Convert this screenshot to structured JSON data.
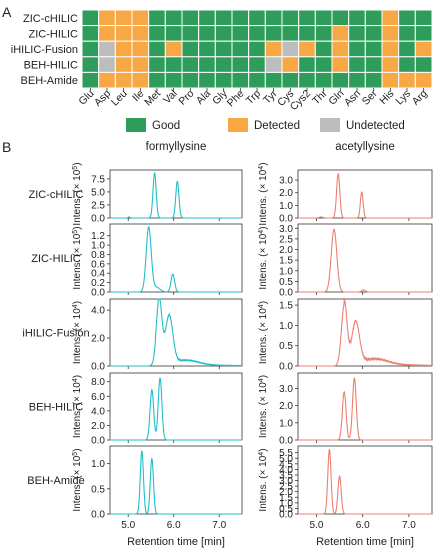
{
  "figure": {
    "panel_a_label": "A",
    "panel_b_label": "B"
  },
  "chart_data": [
    {
      "type": "heatmap",
      "panel": "A",
      "rows": [
        "ZIC-cHILIC",
        "ZIC-HILIC",
        "iHILIC-Fusion",
        "BEH-HILIC",
        "BEH-Amide"
      ],
      "columns": [
        "Glu",
        "Asp",
        "Leu",
        "Ile",
        "Met",
        "Val",
        "Pro",
        "Ala",
        "Gly",
        "Phe",
        "Trp",
        "Tyr",
        "Cys",
        "Cys2",
        "Thr",
        "Gln",
        "Asn",
        "Ser",
        "His",
        "Lys",
        "Arg"
      ],
      "values": [
        [
          "G",
          "D",
          "D",
          "D",
          "G",
          "G",
          "G",
          "G",
          "G",
          "G",
          "G",
          "G",
          "G",
          "G",
          "G",
          "G",
          "G",
          "G",
          "D",
          "G",
          "G"
        ],
        [
          "G",
          "D",
          "D",
          "D",
          "G",
          "G",
          "G",
          "G",
          "G",
          "G",
          "G",
          "G",
          "G",
          "G",
          "G",
          "D",
          "G",
          "G",
          "D",
          "G",
          "G"
        ],
        [
          "G",
          "U",
          "D",
          "D",
          "G",
          "D",
          "G",
          "G",
          "G",
          "G",
          "G",
          "D",
          "U",
          "D",
          "G",
          "D",
          "G",
          "G",
          "D",
          "G",
          "D"
        ],
        [
          "G",
          "U",
          "D",
          "D",
          "G",
          "G",
          "G",
          "G",
          "G",
          "G",
          "G",
          "U",
          "D",
          "G",
          "G",
          "D",
          "G",
          "G",
          "D",
          "G",
          "G"
        ],
        [
          "G",
          "D",
          "D",
          "D",
          "G",
          "G",
          "G",
          "G",
          "G",
          "G",
          "G",
          "G",
          "G",
          "G",
          "G",
          "G",
          "G",
          "G",
          "D",
          "D",
          "D"
        ]
      ],
      "legend": [
        {
          "key": "G",
          "label": "Good",
          "color": "#2e9c5a"
        },
        {
          "key": "D",
          "label": "Detected",
          "color": "#f7a845"
        },
        {
          "key": "U",
          "label": "Undetected",
          "color": "#bdbdbd"
        }
      ]
    },
    {
      "type": "line",
      "panel": "B",
      "xlabel": "Retention time [min]",
      "xlim": [
        4.6,
        7.5
      ],
      "xticks": [
        5.0,
        6.0,
        7.0
      ],
      "xtick_labels": [
        "5.0",
        "6.0",
        "7.0"
      ],
      "ylabel_prefix": "Intens. (× 10",
      "ylabel_suffix": ")",
      "columns": [
        {
          "title": "formyllysine",
          "color": "#22bfc9"
        },
        {
          "title": "acetyllysine",
          "color": "#ee7f70"
        }
      ],
      "rows": [
        "ZIC-cHILIC",
        "ZIC-HILIC",
        "iHILIC-Fusion",
        "BEH-HILIC",
        "BEH-Amide"
      ],
      "plots": [
        [
          {
            "exp": "5",
            "ymax": 9.2,
            "yticks": [
              0.0,
              2.5,
              5.0,
              7.5
            ],
            "ytick_labels": [
              "0.0",
              "2.5",
              "5.0",
              "7.5"
            ],
            "peaks": [
              [
                5.58,
                8.6,
                0.035
              ],
              [
                6.08,
                7.0,
                0.035
              ],
              [
                5.02,
                0.2,
                0.02
              ]
            ]
          },
          {
            "exp": "4",
            "ymax": 3.8,
            "yticks": [
              0.0,
              1.0,
              2.0,
              3.0
            ],
            "ytick_labels": [
              "0.0",
              "1.0",
              "2.0",
              "3.0"
            ],
            "peaks": [
              [
                5.47,
                3.5,
                0.035
              ],
              [
                5.98,
                2.05,
                0.03
              ],
              [
                5.1,
                0.08,
                0.04
              ]
            ]
          }
        ],
        [
          {
            "exp": "5",
            "ymax": 1.45,
            "yticks": [
              0.0,
              0.2,
              0.4,
              0.6,
              0.8,
              1.0,
              1.2
            ],
            "ytick_labels": [
              "0.0",
              "0.2",
              "0.4",
              "0.6",
              "0.8",
              "1.0",
              "1.2"
            ],
            "peaks": [
              [
                5.45,
                1.38,
                0.055
              ],
              [
                5.98,
                0.38,
                0.04
              ],
              [
                5.62,
                0.1,
                0.08
              ]
            ]
          },
          {
            "exp": "4",
            "ymax": 3.2,
            "yticks": [
              0.0,
              0.5,
              1.0,
              1.5,
              2.0,
              2.5,
              3.0
            ],
            "ytick_labels": [
              "0.0",
              "0.5",
              "1.0",
              "1.5",
              "2.0",
              "2.5",
              "3.0"
            ],
            "peaks": [
              [
                5.38,
                2.95,
                0.06
              ],
              [
                6.02,
                0.1,
                0.04
              ]
            ]
          }
        ],
        [
          {
            "exp": "4",
            "ymax": 4.8,
            "yticks": [
              0.0,
              2.0,
              4.0
            ],
            "ytick_labels": [
              "0.0",
              "2.0",
              "4.0"
            ],
            "tail": [
              5.6,
              0.25,
              0.9
            ],
            "peaks": [
              [
                5.68,
                4.6,
                0.06
              ],
              [
                5.9,
                3.4,
                0.08
              ],
              [
                6.3,
                0.3,
                0.25
              ]
            ]
          },
          {
            "exp": "4",
            "ymax": 1.65,
            "yticks": [
              0.0,
              0.5,
              1.0,
              1.5
            ],
            "ytick_labels": [
              "0.0",
              "0.5",
              "1.0",
              "1.5"
            ],
            "tail": [
              5.6,
              0.12,
              0.9
            ],
            "peaks": [
              [
                5.6,
                1.5,
                0.06
              ],
              [
                5.85,
                1.0,
                0.08
              ],
              [
                6.3,
                0.12,
                0.25
              ]
            ]
          }
        ],
        [
          {
            "exp": "4",
            "ymax": 9.2,
            "yticks": [
              0.0,
              2.0,
              4.0,
              6.0,
              8.0
            ],
            "ytick_labels": [
              "0.0",
              "2.0",
              "4.0",
              "6.0",
              "8.0"
            ],
            "peaks": [
              [
                5.52,
                6.9,
                0.04
              ],
              [
                5.7,
                8.5,
                0.04
              ]
            ]
          },
          {
            "exp": "4",
            "ymax": 3.9,
            "yticks": [
              0.0,
              1.0,
              2.0,
              3.0
            ],
            "ytick_labels": [
              "0.0",
              "1.0",
              "2.0",
              "3.0"
            ],
            "peaks": [
              [
                5.6,
                2.8,
                0.04
              ],
              [
                5.82,
                3.6,
                0.04
              ]
            ]
          }
        ],
        [
          {
            "exp": "5",
            "ymax": 1.35,
            "yticks": [
              0.0,
              0.5,
              1.0
            ],
            "ytick_labels": [
              "0.0",
              "0.5",
              "1.0"
            ],
            "peaks": [
              [
                5.3,
                1.25,
                0.035
              ],
              [
                5.52,
                1.1,
                0.035
              ]
            ]
          },
          {
            "exp": "4",
            "ymax": 6.1,
            "yticks": [
              0.0,
              0.5,
              1.0,
              1.5,
              2.0,
              2.5,
              3.0,
              3.5,
              4.0,
              4.5,
              5.0,
              5.5
            ],
            "ytick_labels": [
              "0.0",
              "0.5",
              "1.0",
              "1.5",
              "2.0",
              "2.5",
              "3.0",
              "3.5",
              "4.0",
              "4.5",
              "5.0",
              "5.5"
            ],
            "peaks": [
              [
                5.28,
                5.8,
                0.035
              ],
              [
                5.5,
                3.4,
                0.035
              ]
            ]
          }
        ]
      ]
    }
  ]
}
